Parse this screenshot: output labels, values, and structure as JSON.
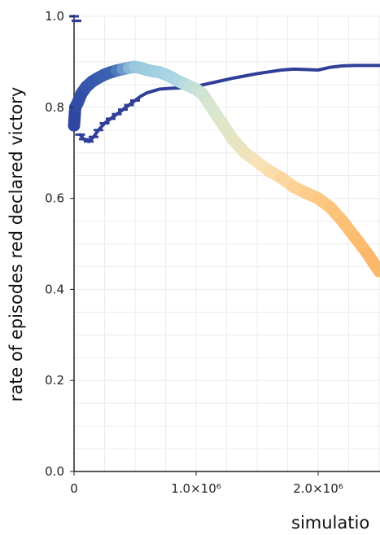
{
  "chart_data": {
    "type": "line",
    "title": "",
    "xlabel": "simulatio",
    "ylabel": "rate of episodes red declared victory",
    "xlim": [
      0,
      2500000
    ],
    "ylim": [
      0,
      1.0
    ],
    "x_ticks": [
      {
        "value": 0,
        "label": "0"
      },
      {
        "value": 1000000,
        "label": "1.0×10⁶"
      },
      {
        "value": 2000000,
        "label": "2.0×10⁶"
      }
    ],
    "y_ticks": [
      {
        "value": 0,
        "label": "0.0"
      },
      {
        "value": 0.2,
        "label": "0.2"
      },
      {
        "value": 0.4,
        "label": "0.4"
      },
      {
        "value": 0.6,
        "label": "0.6"
      },
      {
        "value": 0.8,
        "label": "0.8"
      },
      {
        "value": 1.0,
        "label": "1.0"
      }
    ],
    "grid": true,
    "series": [
      {
        "color": "#2f3f98",
        "style": "thin-line",
        "x": [
          0,
          20000,
          50000,
          80000,
          120000,
          160000,
          200000,
          250000,
          300000,
          350000,
          400000,
          450000,
          500000,
          550000,
          600000,
          650000,
          700000,
          800000,
          900000,
          1000000,
          1100000,
          1200000,
          1300000,
          1400000,
          1500000,
          1600000,
          1700000,
          1800000,
          1900000,
          2000000,
          2100000,
          2200000,
          2300000,
          2400000,
          2500000
        ],
        "y": [
          1.0,
          0.99,
          0.74,
          0.73,
          0.725,
          0.735,
          0.75,
          0.765,
          0.775,
          0.785,
          0.795,
          0.805,
          0.815,
          0.825,
          0.832,
          0.836,
          0.84,
          0.842,
          0.843,
          0.846,
          0.852,
          0.858,
          0.864,
          0.869,
          0.874,
          0.878,
          0.882,
          0.884,
          0.883,
          0.882,
          0.888,
          0.891,
          0.892,
          0.892,
          0.892
        ]
      },
      {
        "color": "#3a62b0",
        "style": "thick-line",
        "x": [
          0,
          10000,
          30000,
          60000,
          100000,
          150000,
          200000,
          250000,
          300000,
          350000,
          400000,
          450000,
          500000,
          550000,
          600000,
          650000,
          700000,
          750000,
          800000,
          850000,
          900000,
          950000,
          1000000,
          1050000,
          1100000,
          1200000,
          1300000,
          1400000,
          1500000,
          1600000,
          1700000,
          1800000,
          1900000,
          2000000,
          2100000,
          2200000,
          2300000,
          2400000,
          2500000
        ],
        "y": [
          0.76,
          0.8,
          0.81,
          0.83,
          0.845,
          0.857,
          0.865,
          0.872,
          0.877,
          0.881,
          0.884,
          0.887,
          0.889,
          0.886,
          0.882,
          0.879,
          0.877,
          0.872,
          0.866,
          0.858,
          0.852,
          0.846,
          0.84,
          0.83,
          0.81,
          0.77,
          0.73,
          0.7,
          0.68,
          0.66,
          0.645,
          0.625,
          0.612,
          0.6,
          0.58,
          0.55,
          0.515,
          0.48,
          0.44
        ]
      }
    ]
  }
}
